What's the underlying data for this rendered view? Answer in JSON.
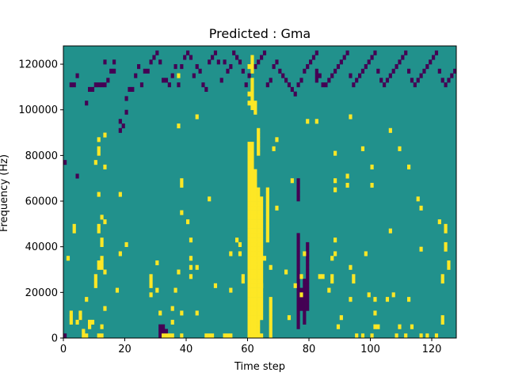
{
  "chart_data": {
    "type": "heatmap",
    "title": "Predicted : Gma",
    "xlabel": "Time step",
    "ylabel": "Frequency (Hz)",
    "xlim": [
      0,
      128
    ],
    "ylim": [
      0,
      128000
    ],
    "x_ticks": [
      0,
      20,
      40,
      60,
      80,
      100,
      120
    ],
    "y_ticks": [
      0,
      20000,
      40000,
      60000,
      80000,
      100000,
      120000
    ],
    "n_time_steps": 128,
    "n_freq_bins": 64,
    "colors": {
      "background": "#21918c",
      "high": "#fde725",
      "low": "#440154"
    },
    "high_cells": [
      [
        1,
        17
      ],
      [
        2,
        5
      ],
      [
        2,
        3
      ],
      [
        2,
        4
      ],
      [
        3,
        23
      ],
      [
        3,
        24
      ],
      [
        4,
        3
      ],
      [
        5,
        5
      ],
      [
        5,
        4
      ],
      [
        6,
        0
      ],
      [
        6,
        1
      ],
      [
        7,
        0
      ],
      [
        7,
        8
      ],
      [
        8,
        2
      ],
      [
        8,
        3
      ],
      [
        9,
        3
      ],
      [
        10,
        38
      ],
      [
        10,
        13
      ],
      [
        10,
        12
      ],
      [
        10,
        11
      ],
      [
        11,
        0
      ],
      [
        11,
        23
      ],
      [
        11,
        24
      ],
      [
        11,
        43
      ],
      [
        11,
        41
      ],
      [
        11,
        40
      ],
      [
        11,
        31
      ],
      [
        11,
        16
      ],
      [
        11,
        15
      ],
      [
        12,
        0
      ],
      [
        12,
        2
      ],
      [
        12,
        15
      ],
      [
        12,
        16
      ],
      [
        12,
        17
      ],
      [
        12,
        20
      ],
      [
        12,
        21
      ],
      [
        12,
        26
      ],
      [
        13,
        25
      ],
      [
        13,
        37
      ],
      [
        13,
        44
      ],
      [
        13,
        14
      ],
      [
        13,
        6
      ],
      [
        17,
        10
      ],
      [
        18,
        18
      ],
      [
        18,
        31
      ],
      [
        20,
        20
      ],
      [
        28,
        13
      ],
      [
        28,
        12
      ],
      [
        28,
        11
      ],
      [
        28,
        9
      ],
      [
        30,
        10
      ],
      [
        30,
        16
      ],
      [
        31,
        5
      ],
      [
        32,
        0
      ],
      [
        33,
        0
      ],
      [
        34,
        0
      ],
      [
        35,
        0
      ],
      [
        35,
        3
      ],
      [
        35,
        6
      ],
      [
        36,
        10
      ],
      [
        37,
        14
      ],
      [
        37,
        46
      ],
      [
        37,
        57
      ],
      [
        38,
        0
      ],
      [
        38,
        5
      ],
      [
        38,
        27
      ],
      [
        38,
        33
      ],
      [
        38,
        34
      ],
      [
        40,
        25
      ],
      [
        41,
        13
      ],
      [
        41,
        17
      ],
      [
        41,
        15
      ],
      [
        41,
        21
      ],
      [
        43,
        5
      ],
      [
        43,
        15
      ],
      [
        43,
        48
      ],
      [
        46,
        0
      ],
      [
        47,
        0
      ],
      [
        47,
        30
      ],
      [
        48,
        0
      ],
      [
        49,
        11
      ],
      [
        52,
        0
      ],
      [
        53,
        0
      ],
      [
        54,
        0
      ],
      [
        54,
        10
      ],
      [
        54,
        18
      ],
      [
        56,
        21
      ],
      [
        57,
        18
      ],
      [
        57,
        20
      ],
      [
        58,
        12
      ],
      [
        58,
        13
      ],
      [
        60,
        29
      ],
      [
        60,
        59
      ],
      [
        61,
        0
      ],
      [
        61,
        33
      ],
      [
        62,
        0
      ],
      [
        63,
        0
      ],
      [
        64,
        0
      ],
      [
        64,
        11
      ],
      [
        65,
        17
      ],
      [
        66,
        32
      ],
      [
        67,
        15
      ],
      [
        68,
        41
      ],
      [
        69,
        28
      ],
      [
        69,
        43
      ],
      [
        72,
        14
      ],
      [
        73,
        4
      ],
      [
        74,
        34
      ],
      [
        75,
        11
      ],
      [
        77,
        9
      ],
      [
        77,
        13
      ],
      [
        78,
        18
      ],
      [
        79,
        47
      ],
      [
        82,
        47
      ],
      [
        83,
        13
      ],
      [
        84,
        13
      ],
      [
        86,
        10
      ],
      [
        87,
        12
      ],
      [
        87,
        13
      ],
      [
        87,
        17
      ],
      [
        88,
        18
      ],
      [
        88,
        21
      ],
      [
        88,
        32
      ],
      [
        88,
        34
      ],
      [
        88,
        40
      ],
      [
        89,
        2
      ],
      [
        90,
        4
      ],
      [
        92,
        33
      ],
      [
        92,
        35
      ],
      [
        93,
        8
      ],
      [
        93,
        15
      ],
      [
        93,
        48
      ],
      [
        94,
        12
      ],
      [
        94,
        13
      ],
      [
        95,
        0
      ],
      [
        97,
        0
      ],
      [
        97,
        41
      ],
      [
        98,
        18
      ],
      [
        99,
        9
      ],
      [
        100,
        0
      ],
      [
        100,
        33
      ],
      [
        100,
        37
      ],
      [
        101,
        2
      ],
      [
        101,
        5
      ],
      [
        101,
        8
      ],
      [
        102,
        2
      ],
      [
        105,
        8
      ],
      [
        106,
        23
      ],
      [
        106,
        45
      ],
      [
        107,
        9
      ],
      [
        108,
        0
      ],
      [
        109,
        2
      ],
      [
        109,
        41
      ],
      [
        111,
        0
      ],
      [
        112,
        37
      ],
      [
        112,
        8
      ],
      [
        113,
        2
      ],
      [
        115,
        30
      ],
      [
        116,
        0
      ],
      [
        116,
        19
      ],
      [
        116,
        28
      ],
      [
        118,
        0
      ],
      [
        121,
        0
      ],
      [
        122,
        25
      ],
      [
        123,
        12
      ],
      [
        123,
        13
      ],
      [
        123,
        3
      ],
      [
        123,
        4
      ],
      [
        124,
        19
      ],
      [
        124,
        20
      ],
      [
        124,
        23
      ],
      [
        124,
        24
      ],
      [
        125,
        15
      ],
      [
        125,
        16
      ]
    ],
    "low_cells": [
      [
        0,
        0
      ],
      [
        0,
        38
      ],
      [
        2,
        55
      ],
      [
        3,
        55
      ],
      [
        4,
        57
      ],
      [
        4,
        35
      ],
      [
        5,
        4
      ],
      [
        7,
        51
      ],
      [
        8,
        54
      ],
      [
        9,
        54
      ],
      [
        10,
        55
      ],
      [
        11,
        55
      ],
      [
        12,
        55
      ],
      [
        13,
        55
      ],
      [
        13,
        60
      ],
      [
        14,
        56
      ],
      [
        15,
        58
      ],
      [
        16,
        58
      ],
      [
        16,
        60
      ],
      [
        18,
        45
      ],
      [
        18,
        47
      ],
      [
        19,
        46
      ],
      [
        20,
        49
      ],
      [
        20,
        52
      ],
      [
        21,
        54
      ],
      [
        22,
        54
      ],
      [
        23,
        57
      ],
      [
        24,
        59
      ],
      [
        25,
        55
      ],
      [
        26,
        58
      ],
      [
        27,
        58
      ],
      [
        28,
        60
      ],
      [
        29,
        61
      ],
      [
        30,
        62
      ],
      [
        31,
        60
      ],
      [
        32,
        56
      ],
      [
        33,
        56
      ],
      [
        34,
        55
      ],
      [
        35,
        57
      ],
      [
        36,
        59
      ],
      [
        37,
        55
      ],
      [
        38,
        59
      ],
      [
        39,
        61
      ],
      [
        40,
        62
      ],
      [
        41,
        61
      ],
      [
        42,
        57
      ],
      [
        43,
        59
      ],
      [
        44,
        58
      ],
      [
        45,
        55
      ],
      [
        46,
        54
      ],
      [
        47,
        60
      ],
      [
        48,
        61
      ],
      [
        49,
        62
      ],
      [
        50,
        60
      ],
      [
        51,
        56
      ],
      [
        52,
        60
      ],
      [
        53,
        58
      ],
      [
        54,
        59
      ],
      [
        55,
        62
      ],
      [
        56,
        61
      ],
      [
        57,
        60
      ],
      [
        58,
        58
      ],
      [
        59,
        55
      ],
      [
        60,
        57
      ],
      [
        61,
        58
      ],
      [
        62,
        59
      ],
      [
        63,
        60
      ],
      [
        64,
        61
      ],
      [
        65,
        62
      ],
      [
        66,
        55
      ],
      [
        67,
        56
      ],
      [
        68,
        59
      ],
      [
        69,
        60
      ],
      [
        70,
        58
      ],
      [
        71,
        57
      ],
      [
        72,
        56
      ],
      [
        73,
        55
      ],
      [
        74,
        54
      ],
      [
        75,
        53
      ],
      [
        76,
        55
      ],
      [
        77,
        56
      ],
      [
        78,
        58
      ],
      [
        79,
        59
      ],
      [
        80,
        60
      ],
      [
        81,
        61
      ],
      [
        82,
        62
      ],
      [
        83,
        57
      ],
      [
        84,
        55
      ],
      [
        85,
        55
      ],
      [
        86,
        56
      ],
      [
        87,
        57
      ],
      [
        88,
        58
      ],
      [
        89,
        59
      ],
      [
        90,
        60
      ],
      [
        91,
        61
      ],
      [
        92,
        62
      ],
      [
        93,
        57
      ],
      [
        94,
        55
      ],
      [
        95,
        56
      ],
      [
        96,
        57
      ],
      [
        97,
        58
      ],
      [
        98,
        59
      ],
      [
        99,
        60
      ],
      [
        100,
        61
      ],
      [
        101,
        62
      ],
      [
        102,
        58
      ],
      [
        103,
        56
      ],
      [
        104,
        55
      ],
      [
        105,
        56
      ],
      [
        106,
        57
      ],
      [
        107,
        58
      ],
      [
        108,
        59
      ],
      [
        109,
        60
      ],
      [
        110,
        61
      ],
      [
        111,
        62
      ],
      [
        112,
        58
      ],
      [
        113,
        56
      ],
      [
        114,
        55
      ],
      [
        115,
        56
      ],
      [
        116,
        57
      ],
      [
        117,
        58
      ],
      [
        118,
        59
      ],
      [
        119,
        60
      ],
      [
        120,
        61
      ],
      [
        121,
        62
      ],
      [
        122,
        58
      ],
      [
        123,
        56
      ],
      [
        124,
        55
      ],
      [
        125,
        56
      ],
      [
        126,
        57
      ],
      [
        127,
        58
      ]
    ],
    "high_runs": [
      [
        60,
        0,
        42
      ],
      [
        61,
        0,
        42
      ],
      [
        62,
        0,
        36
      ],
      [
        63,
        0,
        32
      ],
      [
        60,
        51,
        51
      ],
      [
        60,
        53,
        53
      ],
      [
        61,
        50,
        56
      ],
      [
        62,
        49,
        51
      ],
      [
        64,
        4,
        30
      ],
      [
        67,
        0,
        8
      ],
      [
        66,
        21,
        31
      ],
      [
        63,
        40,
        45
      ],
      [
        61,
        58,
        61
      ]
    ],
    "low_runs": [
      [
        31,
        0,
        2
      ],
      [
        32,
        0,
        2
      ],
      [
        33,
        0,
        1
      ],
      [
        76,
        2,
        22
      ],
      [
        77,
        6,
        10
      ],
      [
        79,
        6,
        20
      ],
      [
        78,
        3,
        12
      ],
      [
        76,
        30,
        34
      ],
      [
        82,
        56,
        58
      ]
    ],
    "legend": "none",
    "grid": false
  }
}
